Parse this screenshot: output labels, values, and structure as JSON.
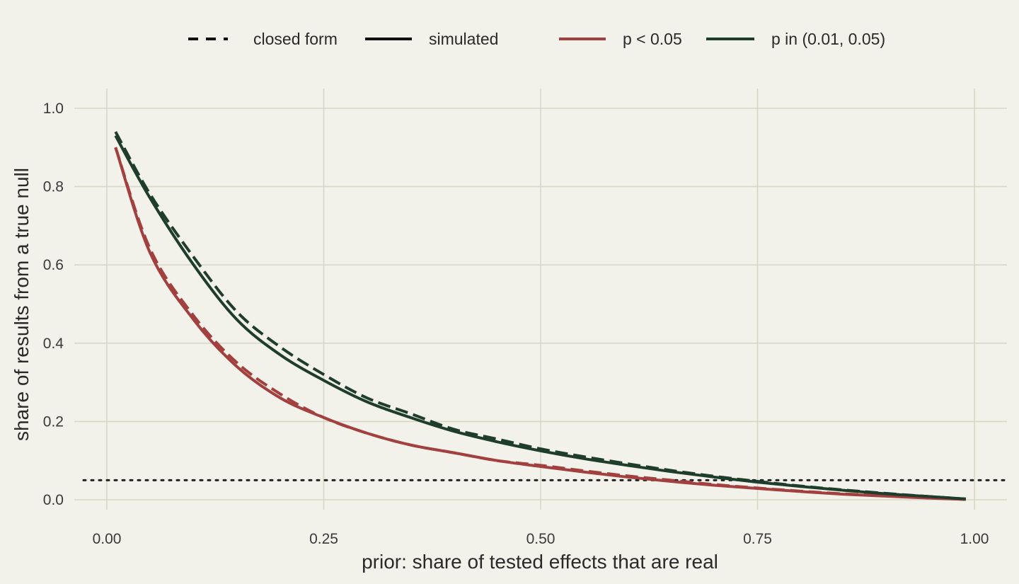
{
  "chart_data": {
    "type": "line",
    "xlabel": "prior: share of tested effects that are real",
    "ylabel": "share of results from a true null",
    "xlim": [
      -0.03,
      1.03
    ],
    "ylim": [
      -0.025,
      1.05
    ],
    "xticks": [
      "0.00",
      "0.25",
      "0.50",
      "0.75",
      "1.00"
    ],
    "yticks": [
      "0.0",
      "0.2",
      "0.4",
      "0.6",
      "0.8",
      "1.0"
    ],
    "grid": true,
    "legend_position": "top",
    "legend": {
      "linetypes": [
        {
          "label": "closed form",
          "dash": "dashed"
        },
        {
          "label": "simulated",
          "dash": "solid"
        }
      ],
      "colors": [
        {
          "label": "p < 0.05",
          "color": "#a23f3f"
        },
        {
          "label": "p in (0.01, 0.05)",
          "color": "#1f3d2b"
        }
      ]
    },
    "reference_line": {
      "y": 0.05,
      "style": "dotted",
      "color": "#222222"
    },
    "series": [
      {
        "name": "p < 0.05",
        "type": "closed form",
        "color": "#a23f3f",
        "dash": "dashed",
        "x": [
          0.01,
          0.05,
          0.1,
          0.15,
          0.2,
          0.25,
          0.3,
          0.35,
          0.4,
          0.45,
          0.5,
          0.55,
          0.6,
          0.65,
          0.7,
          0.75,
          0.8,
          0.85,
          0.9,
          0.95,
          0.99
        ],
        "y": [
          0.9,
          0.64,
          0.47,
          0.35,
          0.27,
          0.21,
          0.17,
          0.14,
          0.12,
          0.1,
          0.088,
          0.074,
          0.061,
          0.05,
          0.039,
          0.03,
          0.022,
          0.015,
          0.01,
          0.005,
          0.001
        ]
      },
      {
        "name": "p < 0.05",
        "type": "simulated",
        "color": "#a23f3f",
        "dash": "solid",
        "x": [
          0.01,
          0.05,
          0.1,
          0.15,
          0.2,
          0.25,
          0.3,
          0.35,
          0.4,
          0.45,
          0.5,
          0.55,
          0.6,
          0.65,
          0.7,
          0.75,
          0.8,
          0.85,
          0.9,
          0.95,
          0.99
        ],
        "y": [
          0.9,
          0.63,
          0.46,
          0.34,
          0.26,
          0.21,
          0.17,
          0.14,
          0.12,
          0.1,
          0.085,
          0.071,
          0.058,
          0.047,
          0.037,
          0.029,
          0.021,
          0.014,
          0.009,
          0.004,
          0.001
        ]
      },
      {
        "name": "p in (0.01, 0.05)",
        "type": "closed form",
        "color": "#1f3d2b",
        "dash": "dashed",
        "x": [
          0.01,
          0.05,
          0.1,
          0.15,
          0.2,
          0.25,
          0.3,
          0.35,
          0.4,
          0.45,
          0.5,
          0.55,
          0.6,
          0.65,
          0.7,
          0.75,
          0.8,
          0.85,
          0.9,
          0.95,
          0.99
        ],
        "y": [
          0.94,
          0.78,
          0.62,
          0.48,
          0.39,
          0.32,
          0.26,
          0.22,
          0.18,
          0.155,
          0.13,
          0.11,
          0.092,
          0.075,
          0.06,
          0.047,
          0.035,
          0.025,
          0.016,
          0.008,
          0.002
        ]
      },
      {
        "name": "p in (0.01, 0.05)",
        "type": "simulated",
        "color": "#1f3d2b",
        "dash": "solid",
        "x": [
          0.01,
          0.05,
          0.1,
          0.15,
          0.2,
          0.25,
          0.3,
          0.35,
          0.4,
          0.45,
          0.5,
          0.55,
          0.6,
          0.65,
          0.7,
          0.75,
          0.8,
          0.85,
          0.9,
          0.95,
          0.99
        ],
        "y": [
          0.93,
          0.77,
          0.6,
          0.46,
          0.37,
          0.305,
          0.25,
          0.21,
          0.175,
          0.148,
          0.125,
          0.105,
          0.088,
          0.072,
          0.058,
          0.045,
          0.034,
          0.024,
          0.015,
          0.008,
          0.002
        ]
      }
    ]
  }
}
